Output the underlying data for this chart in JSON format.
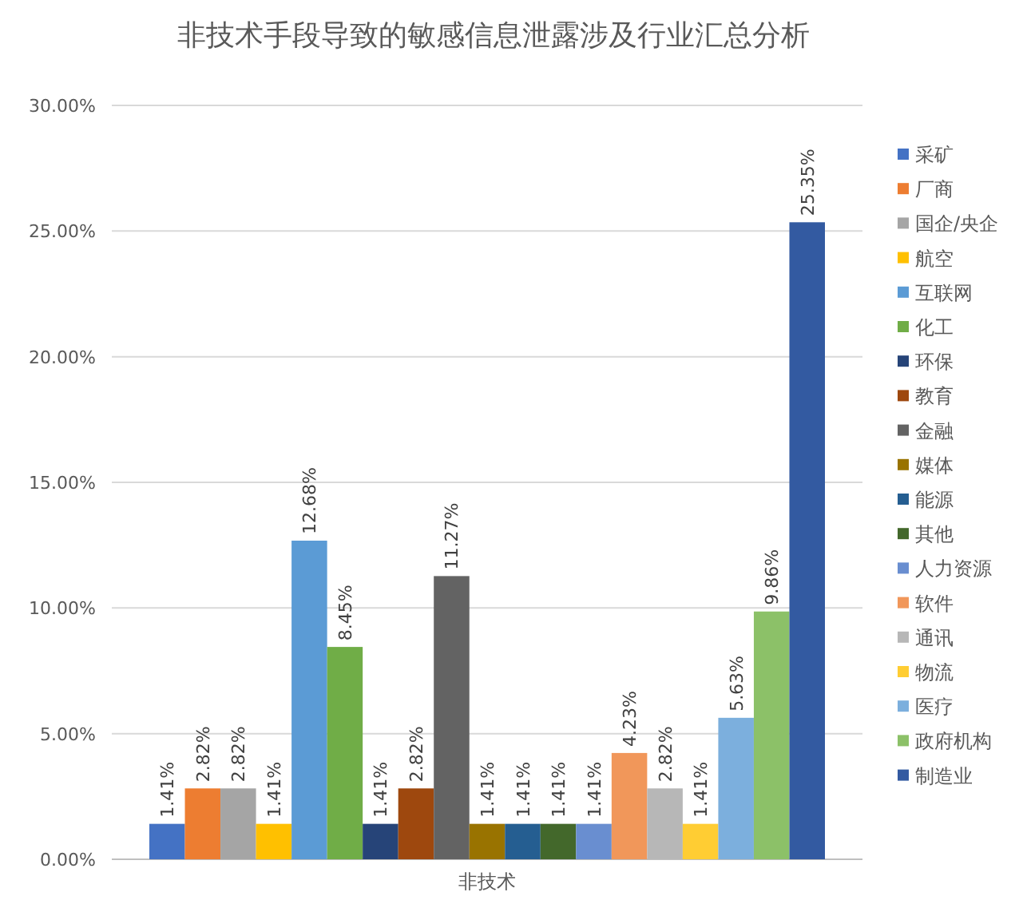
{
  "chart_data": {
    "type": "bar",
    "title": "非技术手段导致的敏感信息泄露涉及行业汇总分析",
    "categories": [
      "非技术"
    ],
    "ylim": [
      0,
      30
    ],
    "yticks": [
      {
        "value": 0,
        "label": "0.00%"
      },
      {
        "value": 5,
        "label": "5.00%"
      },
      {
        "value": 10,
        "label": "10.00%"
      },
      {
        "value": 15,
        "label": "15.00%"
      },
      {
        "value": 20,
        "label": "20.00%"
      },
      {
        "value": 25,
        "label": "25.00%"
      },
      {
        "value": 30,
        "label": "30.00%"
      }
    ],
    "grid": "y",
    "legend": "right",
    "series": [
      {
        "name": "采矿",
        "color": "#4472c4",
        "values": [
          1.41
        ],
        "value_labels": [
          "1.41%"
        ]
      },
      {
        "name": "厂商",
        "color": "#ed7d31",
        "values": [
          2.82
        ],
        "value_labels": [
          "2.82%"
        ]
      },
      {
        "name": "国企/央企",
        "color": "#a5a5a5",
        "values": [
          2.82
        ],
        "value_labels": [
          "2.82%"
        ]
      },
      {
        "name": "航空",
        "color": "#ffc000",
        "values": [
          1.41
        ],
        "value_labels": [
          "1.41%"
        ]
      },
      {
        "name": "互联网",
        "color": "#5b9bd5",
        "values": [
          12.68
        ],
        "value_labels": [
          "12.68%"
        ]
      },
      {
        "name": "化工",
        "color": "#70ad47",
        "values": [
          8.45
        ],
        "value_labels": [
          "8.45%"
        ]
      },
      {
        "name": "环保",
        "color": "#264478",
        "values": [
          1.41
        ],
        "value_labels": [
          "1.41%"
        ]
      },
      {
        "name": "教育",
        "color": "#9e480e",
        "values": [
          2.82
        ],
        "value_labels": [
          "2.82%"
        ]
      },
      {
        "name": "金融",
        "color": "#636363",
        "values": [
          11.27
        ],
        "value_labels": [
          "11.27%"
        ]
      },
      {
        "name": "媒体",
        "color": "#997300",
        "values": [
          1.41
        ],
        "value_labels": [
          "1.41%"
        ]
      },
      {
        "name": "能源",
        "color": "#255e91",
        "values": [
          1.41
        ],
        "value_labels": [
          "1.41%"
        ]
      },
      {
        "name": "其他",
        "color": "#43682b",
        "values": [
          1.41
        ],
        "value_labels": [
          "1.41%"
        ]
      },
      {
        "name": "人力资源",
        "color": "#698ed0",
        "values": [
          1.41
        ],
        "value_labels": [
          "1.41%"
        ]
      },
      {
        "name": "软件",
        "color": "#f1975a",
        "values": [
          4.23
        ],
        "value_labels": [
          "4.23%"
        ]
      },
      {
        "name": "通讯",
        "color": "#b7b7b7",
        "values": [
          2.82
        ],
        "value_labels": [
          "2.82%"
        ]
      },
      {
        "name": "物流",
        "color": "#ffcd33",
        "values": [
          1.41
        ],
        "value_labels": [
          "1.41%"
        ]
      },
      {
        "name": "医疗",
        "color": "#7cafdd",
        "values": [
          5.63
        ],
        "value_labels": [
          "5.63%"
        ]
      },
      {
        "name": "政府机构",
        "color": "#8cc168",
        "values": [
          9.86
        ],
        "value_labels": [
          "9.86%"
        ]
      },
      {
        "name": "制造业",
        "color": "#335aa1",
        "values": [
          25.35
        ],
        "value_labels": [
          "25.35%"
        ]
      }
    ]
  }
}
